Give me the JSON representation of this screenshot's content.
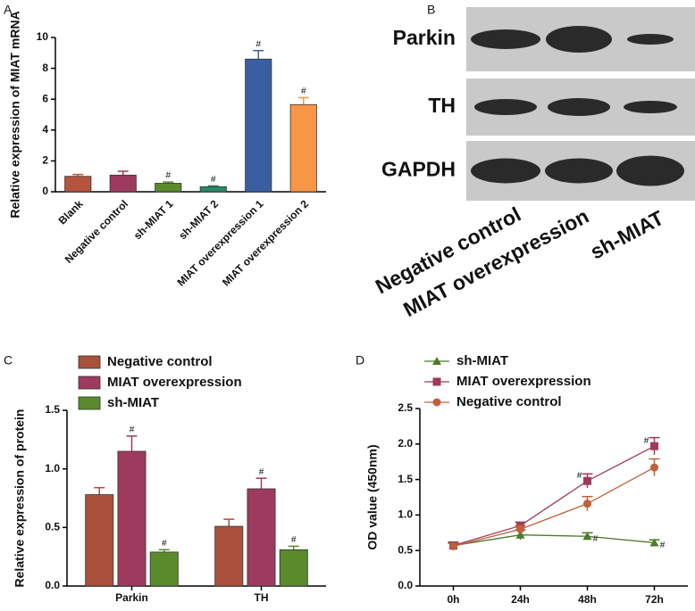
{
  "chart_data": [
    {
      "type": "bar",
      "panel": "A",
      "ylabel": "Relative expression of MIAT mRNA",
      "categories": [
        "Blank",
        "Negative control",
        "sh-MIAT 1",
        "sh-MIAT 2",
        "MIAT overexpression 1",
        "MIAT overexpression 2"
      ],
      "values": [
        1.0,
        1.08,
        0.55,
        0.33,
        8.6,
        5.65
      ],
      "errors": [
        0.12,
        0.25,
        0.08,
        0.05,
        0.55,
        0.45
      ],
      "significance": [
        null,
        null,
        "#",
        "#",
        "#",
        "#"
      ],
      "colors": [
        "#b5533c",
        "#9e3a5e",
        "#5a8a2c",
        "#2a8a6a",
        "#3a5fa0",
        "#f79646"
      ],
      "ylim": [
        0,
        10
      ],
      "yticks": [
        0,
        2,
        4,
        6,
        8,
        10
      ]
    },
    {
      "type": "blot",
      "panel": "B",
      "rows": [
        "Parkin",
        "TH",
        "GAPDH"
      ],
      "columns": [
        "Negative control",
        "MIAT overexpression",
        "sh-MIAT"
      ]
    },
    {
      "type": "bar",
      "panel": "C",
      "ylabel": "Relative expression of protein",
      "categories": [
        "Parkin",
        "TH"
      ],
      "series": [
        {
          "name": "Negative control",
          "color": "#a9513a",
          "values": [
            0.78,
            0.51
          ],
          "errors": [
            0.06,
            0.06
          ],
          "significance": [
            null,
            null
          ]
        },
        {
          "name": "MIAT overexpression",
          "color": "#9e3a5e",
          "values": [
            1.15,
            0.83
          ],
          "errors": [
            0.13,
            0.09
          ],
          "significance": [
            "#",
            "#"
          ]
        },
        {
          "name": "sh-MIAT",
          "color": "#5a8a2c",
          "values": [
            0.29,
            0.31
          ],
          "errors": [
            0.02,
            0.03
          ],
          "significance": [
            "#",
            "#"
          ]
        }
      ],
      "ylim": [
        0,
        1.5
      ],
      "yticks": [
        {
          "value": 0,
          "label": "0.0"
        },
        0.5,
        {
          "value": 1,
          "label": "1.0"
        },
        1.5
      ]
    },
    {
      "type": "line",
      "panel": "D",
      "ylabel": "OD value (450nm)",
      "categories": [
        "0h",
        "24h",
        "48h",
        "72h"
      ],
      "series": [
        {
          "name": "sh-MIAT",
          "color": "#4e7a2a",
          "marker": "triangle",
          "values": [
            0.57,
            0.72,
            0.7,
            0.61
          ],
          "errors": [
            0.05,
            0.07,
            0.05,
            0.04
          ],
          "significance": [
            null,
            null,
            "#",
            "#"
          ]
        },
        {
          "name": "MIAT overexpression",
          "color": "#9e3a5e",
          "marker": "square",
          "values": [
            0.57,
            0.85,
            1.48,
            1.97
          ],
          "errors": [
            0.04,
            0.05,
            0.1,
            0.12
          ],
          "significance": [
            null,
            null,
            "#",
            "#"
          ]
        },
        {
          "name": "Negative control",
          "color": "#c0603a",
          "marker": "circle",
          "values": [
            0.56,
            0.8,
            1.16,
            1.67
          ],
          "errors": [
            0.04,
            0.05,
            0.1,
            0.12
          ],
          "significance": [
            null,
            null,
            null,
            null
          ]
        }
      ],
      "ylim": [
        0,
        2.5
      ],
      "yticks": [
        {
          "value": 0,
          "label": "0.0"
        },
        0.5,
        {
          "value": 1,
          "label": "1.0"
        },
        1.5,
        {
          "value": 2,
          "label": "2.0"
        },
        2.5
      ]
    }
  ]
}
